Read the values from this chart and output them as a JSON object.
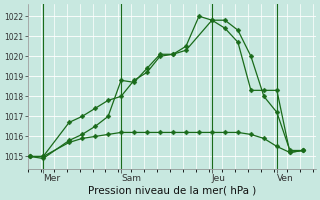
{
  "xlabel": "Pression niveau de la mer( hPa )",
  "bg_color": "#c8e8e0",
  "grid_color": "#ffffff",
  "line_color": "#1a6b1a",
  "vline_color": "#1a6b1a",
  "ylim": [
    1014.4,
    1022.6
  ],
  "yticks": [
    1015,
    1016,
    1017,
    1018,
    1019,
    1020,
    1021,
    1022
  ],
  "xtick_labels": [
    "Mer",
    "Sam",
    "Jeu",
    "Ven"
  ],
  "xtick_positions": [
    0.5,
    3.5,
    7.0,
    9.5
  ],
  "vline_positions": [
    0.5,
    3.5,
    7.0,
    9.5
  ],
  "xlim": [
    -0.1,
    11.0
  ],
  "line1_x": [
    0.0,
    0.5,
    1.5,
    2.0,
    2.5,
    3.0,
    3.5,
    4.0,
    4.5,
    5.0,
    5.5,
    6.0,
    7.0,
    7.5,
    8.0,
    8.5,
    9.0,
    9.5,
    10.0,
    10.5
  ],
  "line1_y": [
    1015.0,
    1015.0,
    1016.7,
    1017.0,
    1017.4,
    1017.8,
    1018.0,
    1018.8,
    1019.2,
    1020.0,
    1020.1,
    1020.3,
    1021.8,
    1021.8,
    1021.3,
    1020.0,
    1018.0,
    1017.2,
    1015.3,
    1015.3
  ],
  "line2_x": [
    0.0,
    0.5,
    1.5,
    2.0,
    2.5,
    3.0,
    3.5,
    4.0,
    4.5,
    5.0,
    5.5,
    6.0,
    6.5,
    7.0,
    7.5,
    8.0,
    8.5,
    9.0,
    9.5,
    10.0,
    10.5
  ],
  "line2_y": [
    1015.0,
    1014.9,
    1015.8,
    1016.1,
    1016.5,
    1017.0,
    1018.8,
    1018.7,
    1019.4,
    1020.1,
    1020.1,
    1020.5,
    1022.0,
    1021.8,
    1021.4,
    1020.7,
    1018.3,
    1018.3,
    1018.3,
    1015.2,
    1015.3
  ],
  "line3_x": [
    0.0,
    0.5,
    1.5,
    2.0,
    2.5,
    3.0,
    3.5,
    4.0,
    4.5,
    5.0,
    5.5,
    6.0,
    6.5,
    7.0,
    7.5,
    8.0,
    8.5,
    9.0,
    9.5,
    10.0,
    10.5
  ],
  "line3_y": [
    1015.0,
    1015.0,
    1015.7,
    1015.9,
    1016.0,
    1016.1,
    1016.2,
    1016.2,
    1016.2,
    1016.2,
    1016.2,
    1016.2,
    1016.2,
    1016.2,
    1016.2,
    1016.2,
    1016.1,
    1015.9,
    1015.5,
    1015.2,
    1015.3
  ],
  "marker": "D",
  "markersize": 2.5,
  "linewidth": 0.9,
  "ytick_fontsize": 5.5,
  "xtick_fontsize": 6.5,
  "xlabel_fontsize": 7.5
}
